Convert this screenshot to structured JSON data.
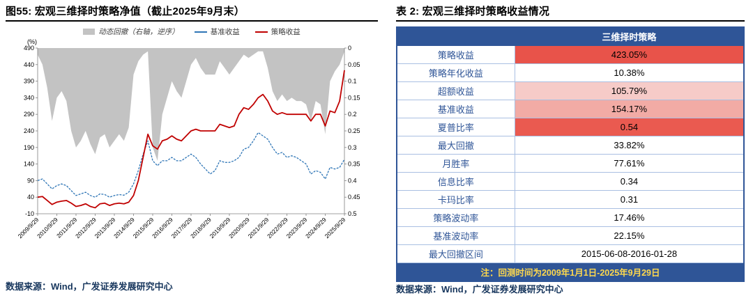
{
  "figure": {
    "title": "图55:  宏观三维择时策略净值（截止2025年9月末）",
    "source": "数据来源：Wind，广发证券发展研究中心"
  },
  "table": {
    "title": "表 2:  宏观三维择时策略收益情况",
    "header": "三维择时策略",
    "rows": [
      {
        "label": "策略收益",
        "value": "423.05%",
        "bg": "#e8534a"
      },
      {
        "label": "策略年化收益",
        "value": "10.38%",
        "bg": "#ffffff"
      },
      {
        "label": "超额收益",
        "value": "105.79%",
        "bg": "#f6cbc8"
      },
      {
        "label": "基准收益",
        "value": "154.17%",
        "bg": "#f2aba5"
      },
      {
        "label": "夏普比率",
        "value": "0.54",
        "bg": "#ea5a50"
      },
      {
        "label": "最大回撤",
        "value": "33.82%",
        "bg": "#ffffff"
      },
      {
        "label": "月胜率",
        "value": "77.61%",
        "bg": "#ffffff"
      },
      {
        "label": "信息比率",
        "value": "0.34",
        "bg": "#ffffff"
      },
      {
        "label": "卡玛比率",
        "value": "0.31",
        "bg": "#ffffff"
      },
      {
        "label": "策略波动率",
        "value": "17.46%",
        "bg": "#ffffff"
      },
      {
        "label": "基准波动率",
        "value": "22.15%",
        "bg": "#ffffff"
      },
      {
        "label": "最大回撤区间",
        "value": "2015-06-08-2016-01-28",
        "bg": "#ffffff"
      }
    ],
    "note": "注：回测时间为2009年1月1日-2025年9月29日",
    "source": "数据来源：Wind，广发证券发展研究中心"
  },
  "colors": {
    "strategy_line": "#c00000",
    "benchmark_line": "#2e75b6",
    "drawdown_area": "#c3c3c3",
    "table_header_bg": "#2f5597",
    "table_label_text": "#2f5597",
    "table_note_text": "#ffd94d",
    "highlight_red": "#e8534a",
    "highlight_mid_pink": "#f2aba5",
    "highlight_light_pink": "#f6cbc8",
    "source_text": "#17365d",
    "title_underline": "#000000"
  },
  "chart_data": {
    "type": "line",
    "title": "宏观三维择时策略净值（截止2025年9月末）",
    "left_axis_unit": "(%)",
    "left_ylim": [
      -10,
      490
    ],
    "left_step": 50,
    "right_ylim": [
      0,
      0.5
    ],
    "right_step": 0.05,
    "right_axis_inverted": true,
    "x_tick_labels": [
      "2009/9/29",
      "2010/9/29",
      "2011/9/29",
      "2012/9/29",
      "2013/9/29",
      "2014/9/29",
      "2015/9/29",
      "2016/9/29",
      "2017/9/29",
      "2018/9/29",
      "2019/9/29",
      "2020/9/29",
      "2021/9/29",
      "2022/9/29",
      "2023/9/29",
      "2024/9/29",
      "2025/9/29"
    ],
    "series": [
      {
        "name": "动态回撤（右轴，逆序）",
        "style": "area",
        "axis": "right",
        "color": "#c3c3c3",
        "values": [
          0.02,
          0.05,
          0.12,
          0.22,
          0.15,
          0.13,
          0.16,
          0.25,
          0.3,
          0.28,
          0.25,
          0.29,
          0.32,
          0.27,
          0.26,
          0.3,
          0.28,
          0.26,
          0.28,
          0.24,
          0.08,
          0.04,
          0.02,
          0.01,
          0.3,
          0.34,
          0.2,
          0.15,
          0.1,
          0.13,
          0.15,
          0.1,
          0.05,
          0.03,
          0.06,
          0.08,
          0.08,
          0.08,
          0.04,
          0.06,
          0.08,
          0.06,
          0.04,
          0.02,
          0.03,
          0.02,
          0.01,
          0.01,
          0.06,
          0.13,
          0.16,
          0.14,
          0.16,
          0.15,
          0.16,
          0.16,
          0.17,
          0.22,
          0.16,
          0.17,
          0.26,
          0.1,
          0.07,
          0.05,
          0.01
        ]
      },
      {
        "name": "基准收益",
        "style": "dashed-line",
        "axis": "left",
        "color": "#2e75b6",
        "values": [
          90,
          95,
          80,
          65,
          75,
          80,
          75,
          60,
          45,
          50,
          55,
          45,
          40,
          50,
          48,
          40,
          45,
          48,
          46,
          55,
          80,
          120,
          170,
          210,
          150,
          135,
          150,
          150,
          160,
          150,
          150,
          160,
          170,
          160,
          140,
          125,
          110,
          120,
          150,
          145,
          145,
          150,
          160,
          185,
          190,
          210,
          235,
          225,
          215,
          190,
          170,
          175,
          160,
          165,
          160,
          150,
          140,
          110,
          120,
          115,
          95,
          130,
          125,
          130,
          154
        ]
      },
      {
        "name": "策略收益",
        "style": "line",
        "axis": "left",
        "color": "#c00000",
        "values": [
          40,
          42,
          30,
          18,
          25,
          28,
          30,
          22,
          12,
          15,
          20,
          12,
          8,
          20,
          22,
          15,
          20,
          22,
          20,
          25,
          45,
          90,
          160,
          230,
          195,
          185,
          210,
          215,
          225,
          215,
          210,
          225,
          240,
          245,
          240,
          240,
          240,
          240,
          260,
          255,
          250,
          255,
          290,
          310,
          305,
          320,
          340,
          350,
          330,
          300,
          290,
          295,
          290,
          290,
          290,
          290,
          290,
          270,
          290,
          290,
          255,
          300,
          295,
          330,
          423
        ]
      }
    ],
    "final_values": {
      "策略收益": 423.05,
      "基准收益": 154.17
    }
  }
}
